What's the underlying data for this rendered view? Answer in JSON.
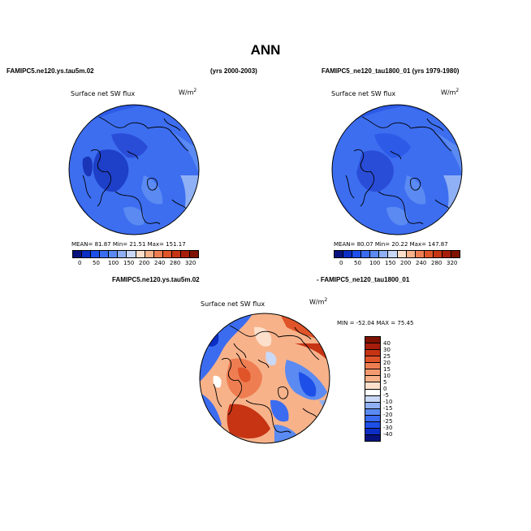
{
  "page": {
    "title": "ANN",
    "left_header": "FAMIPC5.ne120.ys.tau5m.02",
    "center_header": "(yrs 2000-2003)",
    "right_header": "FAMIPC5_ne120_tau1800_01 (yrs 1979-1980)",
    "diff_header_left": "FAMIPC5.ne120.ys.tau5m.02",
    "diff_header_right": "- FAMIPC5_ne120_tau1800_01"
  },
  "panels": {
    "left": {
      "field": "Surface net SW flux",
      "units": "W/m",
      "units_sup": "2",
      "stats": "MEAN=  81.87   Min=   21.51   Max= 151.17"
    },
    "right": {
      "field": "Surface net SW flux",
      "units": "W/m",
      "units_sup": "2",
      "stats": "MEAN=  80.07   Min=   20.22   Max= 147.87"
    },
    "diff": {
      "field": "Surface net SW flux",
      "units": "W/m",
      "units_sup": "2",
      "stats": "MIN = -52.04  MAX =  75.45"
    }
  },
  "colorbars": {
    "abs_labels": [
      "0",
      "50",
      "100",
      "150",
      "200",
      "240",
      "280",
      "320"
    ],
    "abs_colors": [
      "#08127e",
      "#0c2ec4",
      "#1e4fe8",
      "#3b6cf0",
      "#5a8af2",
      "#8fb0f4",
      "#c8d8f6",
      "#fde0cc",
      "#f7b28a",
      "#ee7e52",
      "#e0542a",
      "#c63414",
      "#a71d0a",
      "#7f1200"
    ],
    "diff_labels": [
      "40",
      "30",
      "25",
      "20",
      "15",
      "10",
      "5",
      "0",
      "-5",
      "-10",
      "-15",
      "-20",
      "-25",
      "-30",
      "-40"
    ],
    "diff_colors": [
      "#7f1200",
      "#a71d0a",
      "#c63414",
      "#e0542a",
      "#ee7e52",
      "#f49a70",
      "#f7b28a",
      "#fde0cc",
      "#ffffff",
      "#c8d8f6",
      "#8fb0f4",
      "#5a8af2",
      "#3b6cf0",
      "#1e4fe8",
      "#0c2ec4",
      "#08127e"
    ]
  }
}
